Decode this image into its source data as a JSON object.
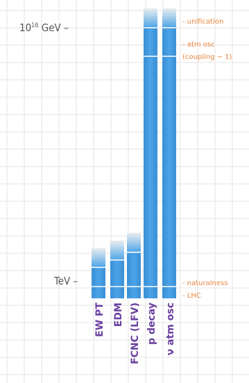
{
  "chart_data": {
    "type": "bar",
    "title": "",
    "xlabel": "",
    "ylabel": "",
    "grid": true,
    "y_scale": "log",
    "y_ticks": [
      {
        "label_base": "10",
        "label_sup": "16",
        "label_unit": " GeV",
        "suffix": " –",
        "value_gev": 1e+16
      },
      {
        "label_base": "TeV",
        "label_sup": "",
        "label_unit": "",
        "suffix": " –",
        "value_gev": 1000
      }
    ],
    "categories": [
      "EW PT",
      "EDM",
      "FCNC (LFV)",
      "p decay",
      "ν atm osc"
    ],
    "values_gev": [
      5000,
      12000,
      30000,
      1e+16,
      1e+16
    ],
    "annotations": [
      {
        "text": "- unification",
        "at_gev": 1e+16
      },
      {
        "text": "- atm osc",
        "at_gev": 1500000000000000.0
      },
      {
        "text": "(coupling ~ 1)",
        "at_gev": 1500000000000000.0,
        "line": 2
      },
      {
        "text": "- naturalness",
        "at_gev": 1000
      },
      {
        "text": "- LHC",
        "at_gev": 1000,
        "line": 2
      }
    ],
    "colors": {
      "bar": "#4ca3e6",
      "bar_dark": "#3a8fd6",
      "bar_top_fade": "#e6ebee",
      "category_text": "#6a3fa0",
      "annotation_text": "#e8843c",
      "grid": "#e3e3e3"
    }
  }
}
